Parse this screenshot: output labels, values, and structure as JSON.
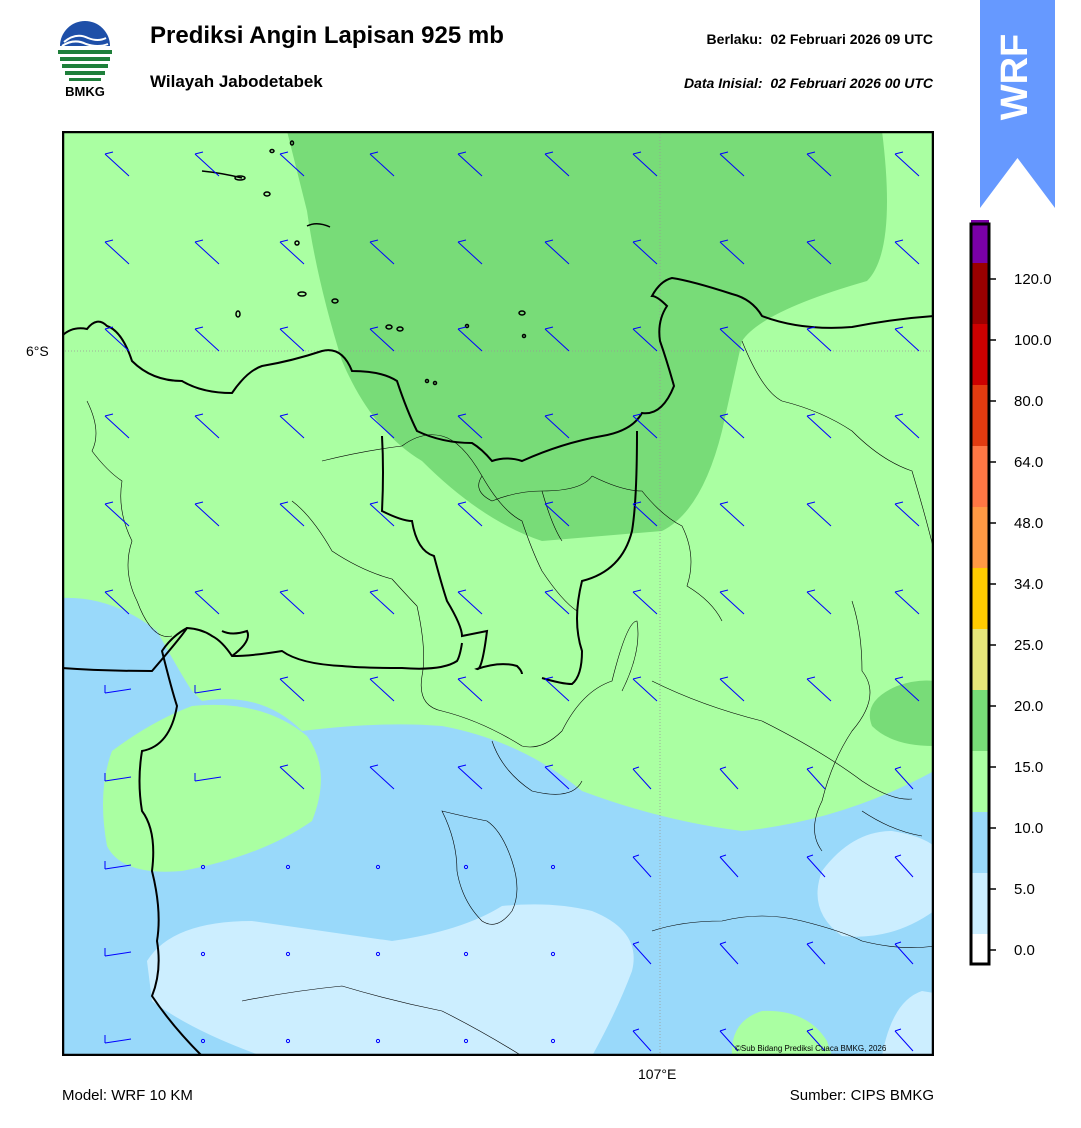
{
  "header": {
    "logo_text": "BMKG",
    "title": "Prediksi Angin Lapisan 925 mb",
    "subtitle": "Wilayah Jabodetabek",
    "valid_label": "Berlaku:",
    "valid_time": "02 Februari 2026 09 UTC",
    "init_label": "Data Inisial:",
    "init_time": "02 Februari 2026 00 UTC"
  },
  "badge": {
    "text": "WRF",
    "color": "#6699ff"
  },
  "map": {
    "lat_label": "6°S",
    "lon_label": "107°E",
    "copyright": "©Sub Bidang Prediksi Cuaca BMKG, 2026",
    "barb_color": "#0000ff",
    "coast_color": "#000000"
  },
  "colorbar": {
    "ticks": [
      "0.0",
      "5.0",
      "10.0",
      "15.0",
      "20.0",
      "25.0",
      "34.0",
      "48.0",
      "64.0",
      "80.0",
      "100.0",
      "120.0"
    ],
    "colors": [
      "#ffffff",
      "#cceeff",
      "#99d9fa",
      "#aaffa2",
      "#78dc78",
      "#e6e67a",
      "#ffcc00",
      "#ff9944",
      "#ff7744",
      "#e23b10",
      "#cc0000",
      "#990000",
      "#7a00a6",
      "#ff6680"
    ]
  },
  "footer": {
    "model": "Model: WRF 10 KM",
    "source": "Sumber: CIPS BMKG"
  }
}
